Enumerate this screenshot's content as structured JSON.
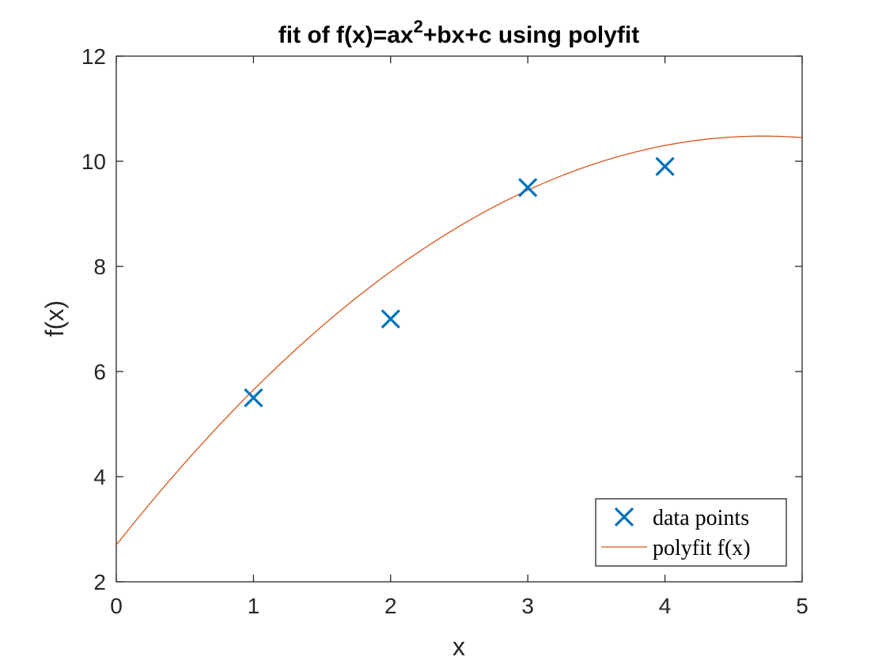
{
  "chart_data": {
    "type": "scatter",
    "title": {
      "prefix": "fit of f(x)=ax",
      "superscript": "2",
      "suffix": "+bx+c using polyfit"
    },
    "xlabel": "x",
    "ylabel": "f(x)",
    "xlim": [
      0,
      5
    ],
    "ylim": [
      2,
      12
    ],
    "xticks": [
      "0",
      "1",
      "2",
      "3",
      "4",
      "5"
    ],
    "yticks": [
      "2",
      "4",
      "6",
      "8",
      "10",
      "12"
    ],
    "grid": false,
    "legend_position": "bottom-right",
    "series": [
      {
        "name": "data points",
        "kind": "scatter",
        "marker": "x",
        "color": "#0072BD",
        "x": [
          1,
          2,
          3,
          4
        ],
        "y": [
          5.5,
          7.0,
          9.5,
          9.9
        ]
      },
      {
        "name": "polyfit f(x)",
        "kind": "line",
        "color": "#D95319",
        "coefficients": {
          "a": -0.35,
          "b": 3.3,
          "c": 2.7
        }
      }
    ]
  }
}
